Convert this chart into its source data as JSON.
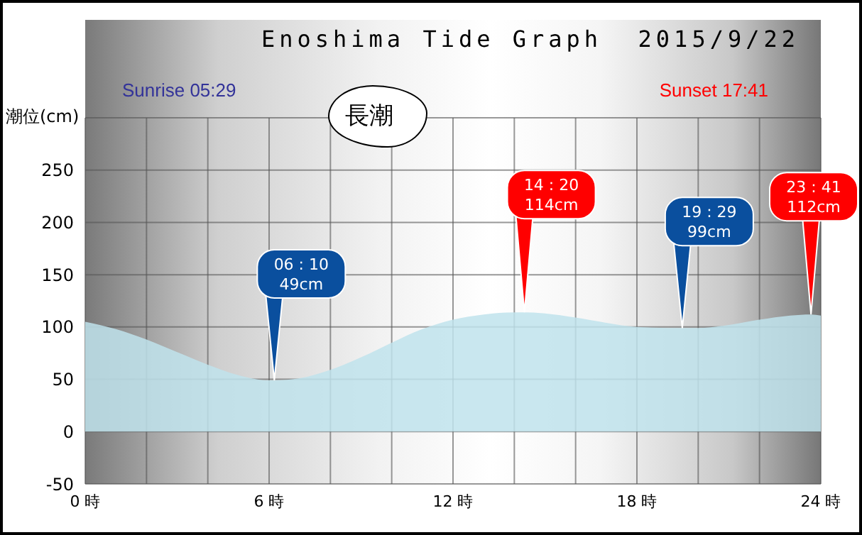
{
  "chart_data": {
    "type": "area",
    "title": "Enoshima Tide Graph  2015/9/22",
    "ylabel": "潮位(cm)",
    "x": [
      0,
      1,
      2,
      3,
      4,
      5,
      6,
      6.17,
      7,
      8,
      9,
      10,
      11,
      12,
      13,
      14,
      14.33,
      15,
      16,
      17,
      18,
      19,
      19.48,
      20,
      21,
      22,
      23,
      23.68,
      24
    ],
    "series": [
      {
        "color": "#bfe3ec",
        "values": [
          105,
          98,
          88,
          76,
          64,
          54,
          49,
          49,
          51,
          59,
          71,
          85,
          98,
          107,
          112,
          114,
          114,
          113,
          109,
          104,
          100,
          99,
          99,
          99,
          102,
          107,
          111,
          112,
          111
        ]
      }
    ],
    "xlim": [
      0,
      24
    ],
    "xticks": [
      {
        "value": 0,
        "label": "0 時"
      },
      {
        "value": 2,
        "label": null
      },
      {
        "value": 4,
        "label": null
      },
      {
        "value": 6,
        "label": "6 時"
      },
      {
        "value": 8,
        "label": null
      },
      {
        "value": 10,
        "label": null
      },
      {
        "value": 12,
        "label": "12 時"
      },
      {
        "value": 14,
        "label": null
      },
      {
        "value": 16,
        "label": null
      },
      {
        "value": 18,
        "label": "18 時"
      },
      {
        "value": 20,
        "label": null
      },
      {
        "value": 22,
        "label": null
      },
      {
        "value": 24,
        "label": "24 時"
      }
    ],
    "ylim": [
      -50,
      300
    ],
    "yticks": [
      -50,
      0,
      50,
      100,
      150,
      200,
      250
    ],
    "grid": true,
    "annotations": [
      "Sunrise 05:29",
      "Sunset 17:41",
      "長潮",
      {
        "text": "06 : 10 49cm",
        "x": 6.17,
        "y": 49
      },
      {
        "text": "14 : 20 114cm",
        "x": 14.33,
        "y": 114
      },
      {
        "text": "19 : 29 99cm",
        "x": 19.48,
        "y": 99
      },
      {
        "text": "23 : 41 112cm",
        "x": 23.68,
        "y": 112
      }
    ]
  }
}
